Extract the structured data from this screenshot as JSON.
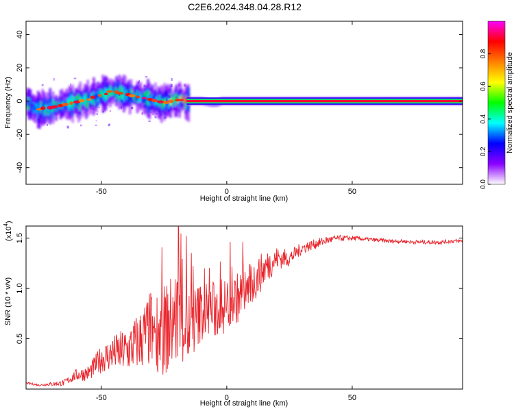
{
  "figure_title": "C2E6.2024.348.04.28.R12",
  "chart_data": [
    {
      "type": "heatmap",
      "title": "C2E6.2024.348.04.28.R12",
      "xlabel": "Height of straight line (km)",
      "ylabel": "Frequency (Hz)",
      "xlim": [
        -80,
        94
      ],
      "ylim": [
        -50,
        48
      ],
      "xticks": [
        -50,
        0,
        50
      ],
      "xtick_labels": [
        "-50",
        "0",
        "50"
      ],
      "yticks": [
        -40,
        -20,
        0,
        20,
        40
      ],
      "ytick_labels": [
        "-40",
        "-20",
        "0",
        "20",
        "40"
      ],
      "grid": false,
      "colorbar": {
        "label": "Normalized spectral amplitude",
        "range": [
          0,
          1
        ],
        "ticks": [
          0.0,
          0.2,
          0.4,
          0.6,
          0.8
        ],
        "tick_labels": [
          "0.0",
          "0.2",
          "0.4",
          "0.6",
          "0.8"
        ],
        "colormap": [
          "#ffffff",
          "#8b00ff",
          "#0000ff",
          "#00ffff",
          "#00ff00",
          "#ffff00",
          "#ff8000",
          "#ff0000",
          "#ff00ff"
        ]
      },
      "ridge": {
        "x": [
          -80,
          -78,
          -75,
          -72,
          -70,
          -67,
          -64,
          -61,
          -58,
          -55,
          -52,
          -49,
          -46,
          -43,
          -40,
          -37,
          -34,
          -31,
          -28,
          -25,
          -22,
          -19,
          -16,
          -14,
          -10,
          -6,
          -4,
          -2,
          0,
          5,
          10,
          20,
          30,
          40,
          50,
          60,
          70,
          80,
          94
        ],
        "y": [
          0,
          -3,
          -5,
          -4,
          -4,
          -3,
          -2,
          -1,
          0,
          1,
          3,
          4,
          6,
          5,
          4,
          3,
          2,
          1,
          0,
          -1,
          0,
          1,
          0,
          0,
          0,
          -1,
          -1,
          0,
          0,
          0,
          0,
          0,
          0,
          0,
          0,
          0,
          0,
          0,
          0
        ],
        "amplitude": [
          0.3,
          0.25,
          0.35,
          0.4,
          0.3,
          0.35,
          0.4,
          0.45,
          0.4,
          0.45,
          0.4,
          0.5,
          0.55,
          0.5,
          0.45,
          0.4,
          0.35,
          0.4,
          0.5,
          0.55,
          0.6,
          0.65,
          0.9,
          0.95,
          0.95,
          0.95,
          0.95,
          0.95,
          0.95,
          0.95,
          0.95,
          0.95,
          0.95,
          0.95,
          0.95,
          0.95,
          0.95,
          0.95,
          0.95
        ]
      }
    },
    {
      "type": "line",
      "xlabel": "Height of straight line (km)",
      "ylabel": "SNR (10 * v/v)",
      "y_multiplier": "(x10",
      "y_multiplier_exponent": "4",
      "y_multiplier_close": ")",
      "xlim": [
        -80,
        94
      ],
      "ylim": [
        0,
        1.62
      ],
      "xticks": [
        -50,
        0,
        50
      ],
      "xtick_labels": [
        "-50",
        "0",
        "50"
      ],
      "yticks": [
        0.5,
        1.0,
        1.5
      ],
      "ytick_labels": [
        "0.5",
        "1.0",
        "1.5"
      ],
      "grid": false,
      "series": [
        {
          "color": "#e8232a",
          "x": [
            -80,
            -75,
            -70,
            -65,
            -60,
            -55,
            -50,
            -45,
            -40,
            -35,
            -30,
            -25,
            -20,
            -15,
            -10,
            -5,
            0,
            5,
            10,
            15,
            20,
            25,
            30,
            35,
            40,
            45,
            50,
            55,
            60,
            65,
            70,
            75,
            80,
            85,
            90,
            94
          ],
          "y": [
            0.06,
            0.04,
            0.05,
            0.06,
            0.14,
            0.16,
            0.3,
            0.36,
            0.38,
            0.48,
            0.6,
            0.58,
            0.72,
            0.6,
            0.78,
            0.78,
            0.84,
            0.92,
            1.04,
            1.2,
            1.3,
            1.3,
            1.4,
            1.44,
            1.48,
            1.5,
            1.5,
            1.49,
            1.48,
            1.47,
            1.47,
            1.46,
            1.46,
            1.46,
            1.47,
            1.47
          ],
          "noise": [
            0.01,
            0.01,
            0.02,
            0.03,
            0.06,
            0.08,
            0.14,
            0.18,
            0.24,
            0.3,
            0.4,
            0.45,
            0.5,
            0.4,
            0.3,
            0.3,
            0.28,
            0.25,
            0.22,
            0.18,
            0.12,
            0.08,
            0.06,
            0.05,
            0.04,
            0.03,
            0.025,
            0.02,
            0.02,
            0.02,
            0.02,
            0.02,
            0.02,
            0.02,
            0.02,
            0.02
          ]
        }
      ]
    }
  ]
}
